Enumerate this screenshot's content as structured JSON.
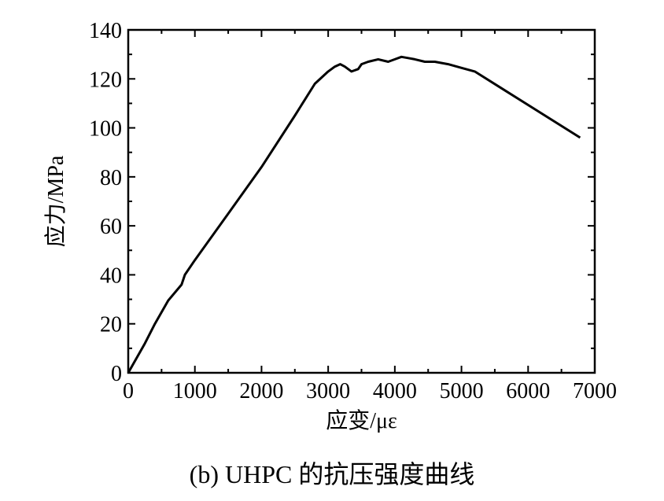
{
  "chart_data": {
    "type": "line",
    "title": "",
    "caption": "(b) UHPC 的抗压强度曲线",
    "xlabel": "应变/με",
    "ylabel": "应力/MPa",
    "xlim": [
      0,
      7000
    ],
    "ylim": [
      0,
      140
    ],
    "x_ticks": [
      0,
      1000,
      2000,
      3000,
      4000,
      5000,
      6000,
      7000
    ],
    "y_ticks": [
      0,
      20,
      40,
      60,
      80,
      100,
      120,
      140
    ],
    "grid": false,
    "legend": "none",
    "line_color": "#000000",
    "series": [
      {
        "x": [
          0,
          250,
          400,
          600,
          800,
          850,
          1000,
          1500,
          2000,
          2500,
          2800,
          3000,
          3100,
          3180,
          3250,
          3350,
          3450,
          3500,
          3600,
          3750,
          3900,
          4000,
          4100,
          4200,
          4300,
          4450,
          4600,
          4800,
          5000,
          5200,
          6780
        ],
        "values": [
          0,
          12,
          20,
          29.5,
          36,
          40,
          46,
          65,
          84,
          105,
          118,
          123,
          125,
          126,
          125,
          123,
          124,
          126,
          127,
          128,
          127,
          128,
          129,
          128.5,
          128,
          127,
          127,
          126,
          124.5,
          123,
          96
        ]
      }
    ]
  }
}
